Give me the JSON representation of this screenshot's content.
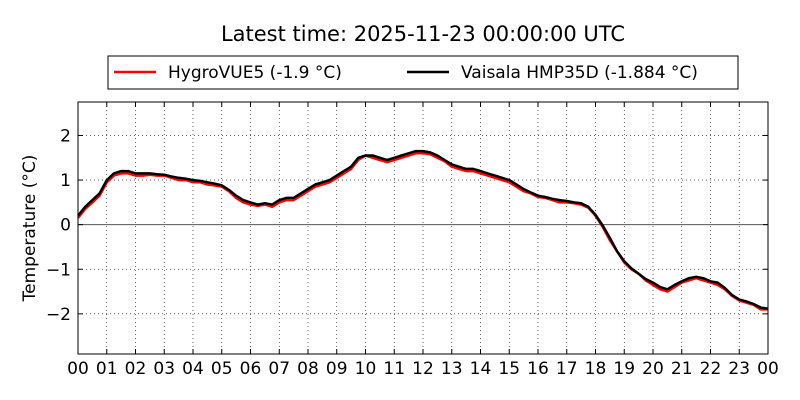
{
  "chart_data": {
    "type": "line",
    "title": "Latest time: 2025-11-23 00:00:00 UTC",
    "xlabel": "",
    "ylabel": "Temperature (°C)",
    "xlim": [
      0,
      24
    ],
    "ylim": [
      -2.9,
      2.75
    ],
    "x_ticks": [
      0,
      1,
      2,
      3,
      4,
      5,
      6,
      7,
      8,
      9,
      10,
      11,
      12,
      13,
      14,
      15,
      16,
      17,
      18,
      19,
      20,
      21,
      22,
      23,
      24
    ],
    "x_tick_labels": [
      "00",
      "01",
      "02",
      "03",
      "04",
      "05",
      "06",
      "07",
      "08",
      "09",
      "10",
      "11",
      "12",
      "13",
      "14",
      "15",
      "16",
      "17",
      "18",
      "19",
      "20",
      "21",
      "22",
      "23",
      "00"
    ],
    "y_ticks": [
      -2,
      -1,
      0,
      1,
      2
    ],
    "y_tick_labels": [
      "−2",
      "−1",
      "0",
      "1",
      "2"
    ],
    "grid": true,
    "zero_line": true,
    "legend": {
      "placement": "top-center",
      "outside": true
    },
    "series": [
      {
        "name": "HygroVUE5 (-1.9 °C)",
        "color": "#ff0000",
        "x": [
          0,
          0.25,
          0.5,
          0.75,
          1.0,
          1.25,
          1.5,
          1.75,
          2.0,
          2.25,
          2.5,
          2.75,
          3.0,
          3.25,
          3.5,
          3.75,
          4.0,
          4.25,
          4.5,
          4.75,
          5.0,
          5.25,
          5.5,
          5.75,
          6.0,
          6.25,
          6.5,
          6.75,
          7.0,
          7.25,
          7.5,
          7.75,
          8.0,
          8.25,
          8.5,
          8.75,
          9.0,
          9.25,
          9.5,
          9.75,
          10.0,
          10.25,
          10.5,
          10.75,
          11.0,
          11.25,
          11.5,
          11.75,
          12.0,
          12.25,
          12.5,
          12.75,
          13.0,
          13.25,
          13.5,
          13.75,
          14.0,
          14.25,
          14.5,
          14.75,
          15.0,
          15.25,
          15.5,
          15.75,
          16.0,
          16.25,
          16.5,
          16.75,
          17.0,
          17.25,
          17.5,
          17.75,
          18.0,
          18.25,
          18.5,
          18.75,
          19.0,
          19.25,
          19.5,
          19.75,
          20.0,
          20.25,
          20.5,
          20.75,
          21.0,
          21.25,
          21.5,
          21.75,
          22.0,
          22.25,
          22.5,
          22.75,
          23.0,
          23.25,
          23.5,
          23.75,
          24.0
        ],
        "values": [
          0.15,
          0.35,
          0.5,
          0.65,
          0.95,
          1.1,
          1.15,
          1.15,
          1.1,
          1.1,
          1.12,
          1.1,
          1.1,
          1.05,
          1.0,
          1.0,
          0.95,
          0.95,
          0.9,
          0.88,
          0.85,
          0.75,
          0.6,
          0.5,
          0.45,
          0.42,
          0.45,
          0.4,
          0.5,
          0.55,
          0.55,
          0.65,
          0.75,
          0.85,
          0.9,
          0.95,
          1.05,
          1.15,
          1.25,
          1.45,
          1.55,
          1.5,
          1.45,
          1.4,
          1.45,
          1.5,
          1.55,
          1.6,
          1.6,
          1.58,
          1.5,
          1.42,
          1.3,
          1.25,
          1.2,
          1.2,
          1.15,
          1.1,
          1.05,
          1.0,
          0.95,
          0.85,
          0.75,
          0.7,
          0.62,
          0.6,
          0.55,
          0.5,
          0.5,
          0.48,
          0.45,
          0.38,
          0.2,
          -0.05,
          -0.35,
          -0.6,
          -0.85,
          -1.0,
          -1.1,
          -1.25,
          -1.35,
          -1.45,
          -1.5,
          -1.4,
          -1.3,
          -1.25,
          -1.2,
          -1.25,
          -1.3,
          -1.35,
          -1.45,
          -1.6,
          -1.7,
          -1.75,
          -1.8,
          -1.9,
          -1.9
        ]
      },
      {
        "name": "Vaisala HMP35D (-1.884 °C)",
        "color": "#000000",
        "x": [
          0,
          0.25,
          0.5,
          0.75,
          1.0,
          1.25,
          1.5,
          1.75,
          2.0,
          2.25,
          2.5,
          2.75,
          3.0,
          3.25,
          3.5,
          3.75,
          4.0,
          4.25,
          4.5,
          4.75,
          5.0,
          5.25,
          5.5,
          5.75,
          6.0,
          6.25,
          6.5,
          6.75,
          7.0,
          7.25,
          7.5,
          7.75,
          8.0,
          8.25,
          8.5,
          8.75,
          9.0,
          9.25,
          9.5,
          9.75,
          10.0,
          10.25,
          10.5,
          10.75,
          11.0,
          11.25,
          11.5,
          11.75,
          12.0,
          12.25,
          12.5,
          12.75,
          13.0,
          13.25,
          13.5,
          13.75,
          14.0,
          14.25,
          14.5,
          14.75,
          15.0,
          15.25,
          15.5,
          15.75,
          16.0,
          16.25,
          16.5,
          16.75,
          17.0,
          17.25,
          17.5,
          17.75,
          18.0,
          18.25,
          18.5,
          18.75,
          19.0,
          19.25,
          19.5,
          19.75,
          20.0,
          20.25,
          20.5,
          20.75,
          21.0,
          21.25,
          21.5,
          21.75,
          22.0,
          22.25,
          22.5,
          22.75,
          23.0,
          23.25,
          23.5,
          23.75,
          24.0
        ],
        "values": [
          0.2,
          0.4,
          0.55,
          0.7,
          1.0,
          1.15,
          1.2,
          1.2,
          1.15,
          1.15,
          1.15,
          1.13,
          1.12,
          1.08,
          1.05,
          1.03,
          1.0,
          0.98,
          0.95,
          0.92,
          0.88,
          0.78,
          0.65,
          0.55,
          0.5,
          0.45,
          0.48,
          0.45,
          0.55,
          0.6,
          0.6,
          0.7,
          0.8,
          0.9,
          0.95,
          1.0,
          1.1,
          1.2,
          1.3,
          1.5,
          1.55,
          1.55,
          1.5,
          1.45,
          1.5,
          1.55,
          1.6,
          1.65,
          1.65,
          1.62,
          1.55,
          1.45,
          1.35,
          1.3,
          1.25,
          1.25,
          1.2,
          1.15,
          1.1,
          1.05,
          1.0,
          0.9,
          0.8,
          0.72,
          0.65,
          0.62,
          0.58,
          0.55,
          0.53,
          0.5,
          0.48,
          0.4,
          0.22,
          -0.02,
          -0.3,
          -0.6,
          -0.82,
          -0.98,
          -1.1,
          -1.22,
          -1.3,
          -1.4,
          -1.45,
          -1.35,
          -1.27,
          -1.2,
          -1.17,
          -1.2,
          -1.27,
          -1.3,
          -1.42,
          -1.58,
          -1.68,
          -1.72,
          -1.78,
          -1.86,
          -1.884
        ]
      }
    ]
  }
}
